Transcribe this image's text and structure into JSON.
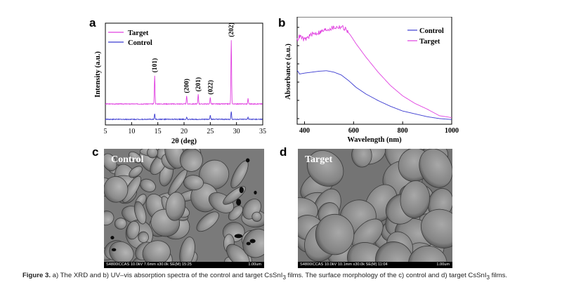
{
  "panels": {
    "a": "a",
    "b": "b",
    "c": "c",
    "d": "d"
  },
  "chart_data": [
    {
      "type": "line",
      "panel": "a",
      "title": "",
      "xlabel": "2θ (deg)",
      "ylabel": "Intensity (a.u.)",
      "xlim": [
        5,
        35
      ],
      "xticks": [
        5,
        10,
        15,
        20,
        25,
        30,
        35
      ],
      "legend": [
        "Target",
        "Control"
      ],
      "legend_position": "top-left",
      "series": [
        {
          "name": "Target",
          "color": "#e040e0",
          "baseline": 0.42,
          "peaks": [
            [
              14.4,
              0.78
            ],
            [
              20.5,
              0.22
            ],
            [
              22.7,
              0.26
            ],
            [
              25.0,
              0.18
            ],
            [
              29.0,
              1.75
            ],
            [
              32.2,
              0.15
            ]
          ]
        },
        {
          "name": "Control",
          "color": "#3a3ad0",
          "baseline": 0.0,
          "peaks": [
            [
              14.4,
              0.15
            ],
            [
              20.5,
              0.05
            ],
            [
              25.0,
              0.12
            ],
            [
              29.0,
              0.22
            ],
            [
              32.2,
              0.05
            ]
          ]
        }
      ],
      "annotations": [
        {
          "text": "(101)",
          "x": 14.4
        },
        {
          "text": "(200)",
          "x": 20.5
        },
        {
          "text": "(201)",
          "x": 22.7
        },
        {
          "text": "(022)",
          "x": 25.0
        },
        {
          "text": "(202)",
          "x": 29.0
        }
      ]
    },
    {
      "type": "line",
      "panel": "b",
      "title": "",
      "xlabel": "Wavelength (nm)",
      "ylabel": "Absorbance (a.u.)",
      "xlim": [
        370,
        1000
      ],
      "xticks": [
        400,
        600,
        800,
        1000
      ],
      "legend": [
        "Control",
        "Target"
      ],
      "legend_position": "top-right",
      "series": [
        {
          "name": "Control",
          "color": "#3a3ad0",
          "x": [
            370,
            380,
            400,
            430,
            460,
            490,
            520,
            550,
            580,
            610,
            650,
            700,
            750,
            800,
            850,
            900,
            950,
            1000
          ],
          "y": [
            0.54,
            0.5,
            0.51,
            0.52,
            0.53,
            0.535,
            0.52,
            0.49,
            0.43,
            0.36,
            0.29,
            0.22,
            0.16,
            0.11,
            0.08,
            0.05,
            0.03,
            0.02
          ]
        },
        {
          "name": "Target",
          "color": "#e040e0",
          "x": [
            370,
            380,
            400,
            430,
            460,
            490,
            520,
            550,
            570,
            590,
            610,
            650,
            700,
            750,
            800,
            850,
            900,
            950,
            1000
          ],
          "y": [
            0.86,
            0.9,
            0.86,
            0.92,
            0.94,
            0.97,
            0.99,
            1.0,
            0.97,
            0.9,
            0.82,
            0.68,
            0.52,
            0.38,
            0.27,
            0.19,
            0.13,
            0.06,
            0.04
          ]
        }
      ]
    }
  ],
  "sem": {
    "c": {
      "label": "Control",
      "footer_left": "S4800ICCAS 10.0kV 7.6mm x30.0k SE(M) 15:25",
      "footer_right": "1.00um"
    },
    "d": {
      "label": "Target",
      "footer_left": "S4800ICCAS 10.0kV 10.1mm x30.0k SE(M) 11:04",
      "footer_right": "1.00um"
    }
  },
  "caption": {
    "label": "Figure 3.",
    "part1": " a) The XRD and b) UV–vis absorption spectra of the control and target CsSnI",
    "sub1": "3",
    "part2": " films. The surface morphology of the c) control and d) target CsSnI",
    "sub2": "3",
    "part3": " films."
  }
}
